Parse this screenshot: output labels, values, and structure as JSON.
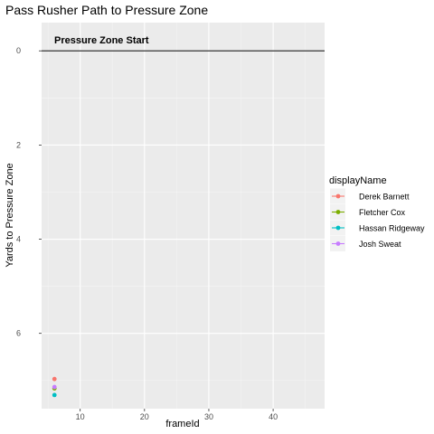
{
  "chart_data": {
    "type": "scatter",
    "title": "Pass Rusher Path to Pressure Zone",
    "xlabel": "frameId",
    "ylabel": "Yards to Pressure Zone",
    "xlim": [
      4,
      48
    ],
    "ylim": [
      7.6,
      -0.6
    ],
    "y_reversed": true,
    "x_ticks": [
      10,
      20,
      30,
      40
    ],
    "y_ticks": [
      0,
      2,
      4,
      6
    ],
    "grid": true,
    "reference_line": {
      "y": 0,
      "label": "Pressure Zone Start",
      "color": "#333333"
    },
    "legend": {
      "title": "displayName",
      "position": "right"
    },
    "series": [
      {
        "name": "Derek Barnett",
        "color": "#F8766D",
        "points": [
          {
            "x": 6,
            "y": 6.97
          }
        ]
      },
      {
        "name": "Fletcher Cox",
        "color": "#7CAE00",
        "points": [
          {
            "x": 6,
            "y": 7.17
          }
        ]
      },
      {
        "name": "Hassan Ridgeway",
        "color": "#00BFC4",
        "points": [
          {
            "x": 6,
            "y": 7.31
          }
        ]
      },
      {
        "name": "Josh Sweat",
        "color": "#C77CFF",
        "points": [
          {
            "x": 6,
            "y": 7.14
          }
        ]
      }
    ]
  }
}
